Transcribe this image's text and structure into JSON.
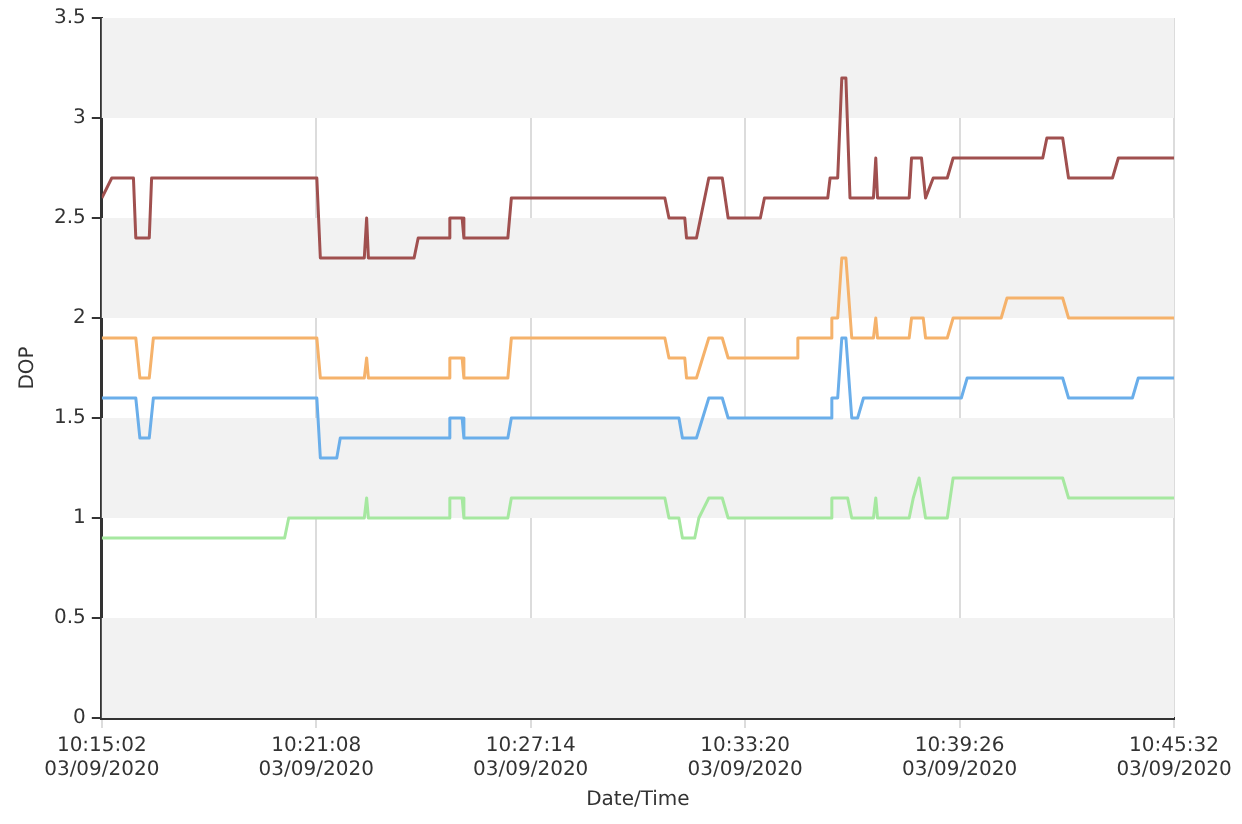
{
  "chart_data": {
    "type": "line",
    "xlabel": "Date/Time",
    "ylabel": "DOP",
    "grid": "x",
    "legend": false,
    "marker": "none",
    "line_style": "solid",
    "xlim": [
      "2020-03-09T10:15:02",
      "2020-03-09T10:45:32"
    ],
    "xticks": [
      {
        "value": "2020-03-09T10:15:02",
        "label": "10:15:02\n03/09/2020"
      },
      {
        "value": "2020-03-09T10:21:08",
        "label": "10:21:08\n03/09/2020"
      },
      {
        "value": "2020-03-09T10:27:14",
        "label": "10:27:14\n03/09/2020"
      },
      {
        "value": "2020-03-09T10:33:20",
        "label": "10:33:20\n03/09/2020"
      },
      {
        "value": "2020-03-09T10:39:26",
        "label": "10:39:26\n03/09/2020"
      },
      {
        "value": "2020-03-09T10:45:32",
        "label": "10:45:32\n03/09/2020"
      }
    ],
    "ylim": [
      0,
      3.5
    ],
    "yticks": [
      0,
      0.5,
      1,
      1.5,
      2,
      2.5,
      3,
      3.5
    ],
    "bands": [
      {
        "axis": "y",
        "from": 0,
        "to": 0.5,
        "color": "#f2f2f2"
      },
      {
        "axis": "y",
        "from": 1,
        "to": 1.5,
        "color": "#f2f2f2"
      },
      {
        "axis": "y",
        "from": 2,
        "to": 2.5,
        "color": "#f2f2f2"
      },
      {
        "axis": "y",
        "from": 3,
        "to": 3.5,
        "color": "#f2f2f2"
      }
    ],
    "series": [
      {
        "color": "#a0504f",
        "x": [
          "2020-03-09T10:15:02",
          "2020-03-09T10:15:19",
          "2020-03-09T10:15:56",
          "2020-03-09T10:16:00",
          "2020-03-09T10:16:23",
          "2020-03-09T10:16:27",
          "2020-03-09T10:21:09",
          "2020-03-09T10:21:15",
          "2020-03-09T10:22:30",
          "2020-03-09T10:22:34",
          "2020-03-09T10:22:37",
          "2020-03-09T10:23:55",
          "2020-03-09T10:24:02",
          "2020-03-09T10:24:53",
          "2020-03-09T10:24:56",
          "2020-03-09T10:25:17",
          "2020-03-09T10:25:20",
          "2020-03-09T10:26:35",
          "2020-03-09T10:26:41",
          "2020-03-09T10:31:03",
          "2020-03-09T10:31:10",
          "2020-03-09T10:31:37",
          "2020-03-09T10:31:40",
          "2020-03-09T10:31:57",
          "2020-03-09T10:32:18",
          "2020-03-09T10:32:41",
          "2020-03-09T10:32:51",
          "2020-03-09T10:33:46",
          "2020-03-09T10:33:53",
          "2020-03-09T10:35:41",
          "2020-03-09T10:35:45",
          "2020-03-09T10:35:58",
          "2020-03-09T10:36:05",
          "2020-03-09T10:36:12",
          "2020-03-09T10:36:19",
          "2020-03-09T10:36:59",
          "2020-03-09T10:37:03",
          "2020-03-09T10:37:06",
          "2020-03-09T10:38:00",
          "2020-03-09T10:38:04",
          "2020-03-09T10:38:21",
          "2020-03-09T10:38:28",
          "2020-03-09T10:38:41",
          "2020-03-09T10:39:05",
          "2020-03-09T10:39:15",
          "2020-03-09T10:41:48",
          "2020-03-09T10:41:55",
          "2020-03-09T10:42:22",
          "2020-03-09T10:42:32",
          "2020-03-09T10:43:47",
          "2020-03-09T10:43:57",
          "2020-03-09T10:45:32"
        ],
        "values": [
          2.6,
          2.7,
          2.7,
          2.4,
          2.4,
          2.7,
          2.7,
          2.3,
          2.3,
          2.5,
          2.3,
          2.3,
          2.4,
          2.4,
          2.5,
          2.5,
          2.4,
          2.4,
          2.6,
          2.6,
          2.5,
          2.5,
          2.4,
          2.4,
          2.7,
          2.7,
          2.5,
          2.5,
          2.6,
          2.6,
          2.7,
          2.7,
          3.2,
          3.2,
          2.6,
          2.6,
          2.8,
          2.6,
          2.6,
          2.8,
          2.8,
          2.6,
          2.7,
          2.7,
          2.8,
          2.8,
          2.9,
          2.9,
          2.7,
          2.7,
          2.8,
          2.8
        ]
      },
      {
        "color": "#f5b26b",
        "x": [
          "2020-03-09T10:15:02",
          "2020-03-09T10:16:00",
          "2020-03-09T10:16:07",
          "2020-03-09T10:16:23",
          "2020-03-09T10:16:30",
          "2020-03-09T10:21:09",
          "2020-03-09T10:21:15",
          "2020-03-09T10:22:30",
          "2020-03-09T10:22:34",
          "2020-03-09T10:22:37",
          "2020-03-09T10:24:53",
          "2020-03-09T10:24:56",
          "2020-03-09T10:25:17",
          "2020-03-09T10:25:20",
          "2020-03-09T10:26:35",
          "2020-03-09T10:26:41",
          "2020-03-09T10:31:03",
          "2020-03-09T10:31:10",
          "2020-03-09T10:31:37",
          "2020-03-09T10:31:40",
          "2020-03-09T10:31:57",
          "2020-03-09T10:32:18",
          "2020-03-09T10:32:41",
          "2020-03-09T10:32:51",
          "2020-03-09T10:34:47",
          "2020-03-09T10:34:50",
          "2020-03-09T10:35:45",
          "2020-03-09T10:35:48",
          "2020-03-09T10:35:58",
          "2020-03-09T10:36:05",
          "2020-03-09T10:36:12",
          "2020-03-09T10:36:22",
          "2020-03-09T10:36:59",
          "2020-03-09T10:37:03",
          "2020-03-09T10:37:06",
          "2020-03-09T10:38:00",
          "2020-03-09T10:38:04",
          "2020-03-09T10:38:24",
          "2020-03-09T10:38:28",
          "2020-03-09T10:39:05",
          "2020-03-09T10:39:15",
          "2020-03-09T10:40:37",
          "2020-03-09T10:40:47",
          "2020-03-09T10:42:22",
          "2020-03-09T10:42:32",
          "2020-03-09T10:45:32"
        ],
        "values": [
          1.9,
          1.9,
          1.7,
          1.7,
          1.9,
          1.9,
          1.7,
          1.7,
          1.8,
          1.7,
          1.7,
          1.8,
          1.8,
          1.7,
          1.7,
          1.9,
          1.9,
          1.8,
          1.8,
          1.7,
          1.7,
          1.9,
          1.9,
          1.8,
          1.8,
          1.9,
          1.9,
          2.0,
          2.0,
          2.3,
          2.3,
          1.9,
          1.9,
          2.0,
          1.9,
          1.9,
          2.0,
          2.0,
          1.9,
          1.9,
          2.0,
          2.0,
          2.1,
          2.1,
          2.0,
          2.0
        ]
      },
      {
        "color": "#6aaeea",
        "x": [
          "2020-03-09T10:15:02",
          "2020-03-09T10:16:00",
          "2020-03-09T10:16:07",
          "2020-03-09T10:16:23",
          "2020-03-09T10:16:30",
          "2020-03-09T10:21:09",
          "2020-03-09T10:21:15",
          "2020-03-09T10:21:43",
          "2020-03-09T10:21:49",
          "2020-03-09T10:24:53",
          "2020-03-09T10:24:56",
          "2020-03-09T10:25:17",
          "2020-03-09T10:25:20",
          "2020-03-09T10:26:35",
          "2020-03-09T10:26:41",
          "2020-03-09T10:31:27",
          "2020-03-09T10:31:33",
          "2020-03-09T10:31:57",
          "2020-03-09T10:32:18",
          "2020-03-09T10:32:41",
          "2020-03-09T10:32:51",
          "2020-03-09T10:35:45",
          "2020-03-09T10:35:48",
          "2020-03-09T10:35:58",
          "2020-03-09T10:36:05",
          "2020-03-09T10:36:12",
          "2020-03-09T10:36:22",
          "2020-03-09T10:36:32",
          "2020-03-09T10:36:42",
          "2020-03-09T10:39:29",
          "2020-03-09T10:39:39",
          "2020-03-09T10:42:22",
          "2020-03-09T10:42:32",
          "2020-03-09T10:44:21",
          "2020-03-09T10:44:31",
          "2020-03-09T10:45:32"
        ],
        "values": [
          1.6,
          1.6,
          1.4,
          1.4,
          1.6,
          1.6,
          1.3,
          1.3,
          1.4,
          1.4,
          1.5,
          1.5,
          1.4,
          1.4,
          1.5,
          1.5,
          1.4,
          1.4,
          1.6,
          1.6,
          1.5,
          1.5,
          1.6,
          1.6,
          1.9,
          1.9,
          1.5,
          1.5,
          1.6,
          1.6,
          1.7,
          1.7,
          1.6,
          1.6,
          1.7,
          1.7
        ]
      },
      {
        "color": "#a6e8a0",
        "x": [
          "2020-03-09T10:15:02",
          "2020-03-09T10:20:14",
          "2020-03-09T10:20:21",
          "2020-03-09T10:22:30",
          "2020-03-09T10:22:34",
          "2020-03-09T10:22:37",
          "2020-03-09T10:24:53",
          "2020-03-09T10:24:56",
          "2020-03-09T10:25:17",
          "2020-03-09T10:25:20",
          "2020-03-09T10:26:35",
          "2020-03-09T10:26:41",
          "2020-03-09T10:31:03",
          "2020-03-09T10:31:10",
          "2020-03-09T10:31:27",
          "2020-03-09T10:31:33",
          "2020-03-09T10:31:54",
          "2020-03-09T10:32:01",
          "2020-03-09T10:32:18",
          "2020-03-09T10:32:41",
          "2020-03-09T10:32:51",
          "2020-03-09T10:35:45",
          "2020-03-09T10:35:48",
          "2020-03-09T10:36:15",
          "2020-03-09T10:36:22",
          "2020-03-09T10:36:59",
          "2020-03-09T10:37:03",
          "2020-03-09T10:37:06",
          "2020-03-09T10:38:00",
          "2020-03-09T10:38:07",
          "2020-03-09T10:38:17",
          "2020-03-09T10:38:28",
          "2020-03-09T10:39:05",
          "2020-03-09T10:39:15",
          "2020-03-09T10:42:22",
          "2020-03-09T10:42:32",
          "2020-03-09T10:45:32"
        ],
        "values": [
          0.9,
          0.9,
          1.0,
          1.0,
          1.1,
          1.0,
          1.0,
          1.1,
          1.1,
          1.0,
          1.0,
          1.1,
          1.1,
          1.0,
          1.0,
          0.9,
          0.9,
          1.0,
          1.1,
          1.1,
          1.0,
          1.0,
          1.1,
          1.1,
          1.0,
          1.0,
          1.1,
          1.0,
          1.0,
          1.1,
          1.2,
          1.0,
          1.0,
          1.2,
          1.2,
          1.1,
          1.1
        ]
      }
    ]
  }
}
